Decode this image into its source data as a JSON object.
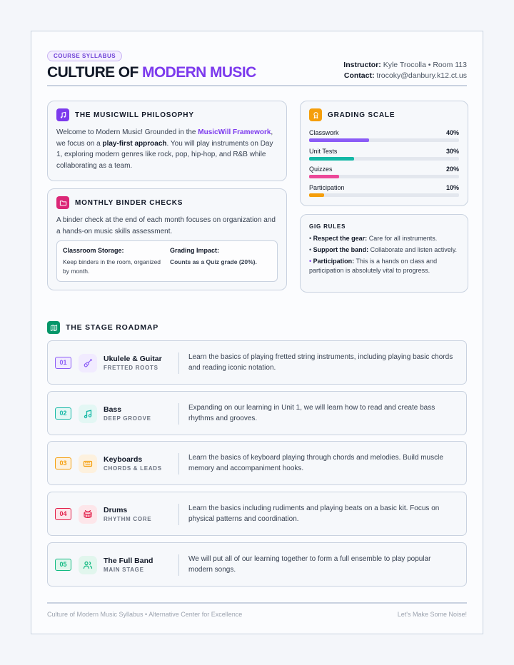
{
  "header": {
    "badge": "COURSE SYLLABUS",
    "title_main": "CULTURE OF ",
    "title_accent": "MODERN MUSIC",
    "instructor_label": "Instructor:",
    "instructor_value": "Kyle Trocolla • Room 113",
    "contact_label": "Contact:",
    "contact_value": "trocoky@danbury.k12.ct.us"
  },
  "philosophy": {
    "title": "THE MUSICWILL PHILOSOPHY",
    "icon": "music-note-icon",
    "t1": "Welcome to Modern Music! Grounded in the ",
    "link": "MusicWill Framework",
    "t2": ", we focus on a ",
    "strong": "play-first approach",
    "t3": ". You will play instruments on Day 1, exploring modern genres like rock, pop, hip-hop, and R&B while collaborating as a team."
  },
  "binder": {
    "title": "MONTHLY BINDER CHECKS",
    "icon": "folder-icon",
    "text": "A binder check at the end of each month focuses on organization and a hands-on music skills assessment.",
    "storage_label": "Classroom Storage:",
    "storage_text": "Keep binders in the room, organized by month.",
    "impact_label": "Grading Impact:",
    "impact_text": "Counts as a Quiz grade (20%)."
  },
  "grading": {
    "title": "GRADING SCALE",
    "icon": "award-icon",
    "items": [
      {
        "label": "Classwork",
        "percent": "40%",
        "value": 0.4,
        "color": "#8b5cf6"
      },
      {
        "label": "Unit Tests",
        "percent": "30%",
        "value": 0.3,
        "color": "#14b8a6"
      },
      {
        "label": "Quizzes",
        "percent": "20%",
        "value": 0.2,
        "color": "#ec4899"
      },
      {
        "label": "Participation",
        "percent": "10%",
        "value": 0.1,
        "color": "#f59e0b"
      }
    ]
  },
  "gig": {
    "title": "GIG RULES",
    "r1_label": "Respect the gear:",
    "r1_text": " Care for all instruments.",
    "r2_label": "Support the band:",
    "r2_text": " Collaborate and listen actively.",
    "r3_label": "Participation:",
    "r3_text": " This is a hands on class and participation is absolutely vital to progress."
  },
  "roadmap": {
    "title": "THE STAGE ROADMAP",
    "icon": "map-icon",
    "stages": [
      {
        "num": "01",
        "name": "Ukulele & Guitar",
        "sub": "FRETTED ROOTS",
        "icon": "guitar-icon",
        "color": "#8b5cf6",
        "bg": "#f1ebff",
        "desc": "Learn the basics of playing fretted string instruments, including playing basic chords and reading iconic notation."
      },
      {
        "num": "02",
        "name": "Bass",
        "sub": "DEEP GROOVE",
        "icon": "music-note-icon",
        "color": "#14b8a6",
        "bg": "#e3f7f4",
        "desc": "Expanding on our learning in Unit 1, we will learn how to read and create bass rhythms and grooves."
      },
      {
        "num": "03",
        "name": "Keyboards",
        "sub": "CHORDS & LEADS",
        "icon": "keyboard-icon",
        "color": "#f59e0b",
        "bg": "#fdf1de",
        "desc": "Learn the basics of keyboard playing through chords and melodies. Build muscle memory and accompaniment hooks."
      },
      {
        "num": "04",
        "name": "Drums",
        "sub": "RHYTHM CORE",
        "icon": "drum-icon",
        "color": "#e11d48",
        "bg": "#fde6ea",
        "desc": "Learn the basics including rudiments and playing beats on a basic kit. Focus on physical patterns and coordination."
      },
      {
        "num": "05",
        "name": "The Full Band",
        "sub": "MAIN STAGE",
        "icon": "users-icon",
        "color": "#10b981",
        "bg": "#e1f6ed",
        "desc": "We will put all of our learning together to form a full ensemble to play popular modern songs."
      }
    ]
  },
  "footer": {
    "left": "Culture of Modern Music Syllabus • Alternative Center for Excellence",
    "right": "Let's Make Some Noise!"
  }
}
